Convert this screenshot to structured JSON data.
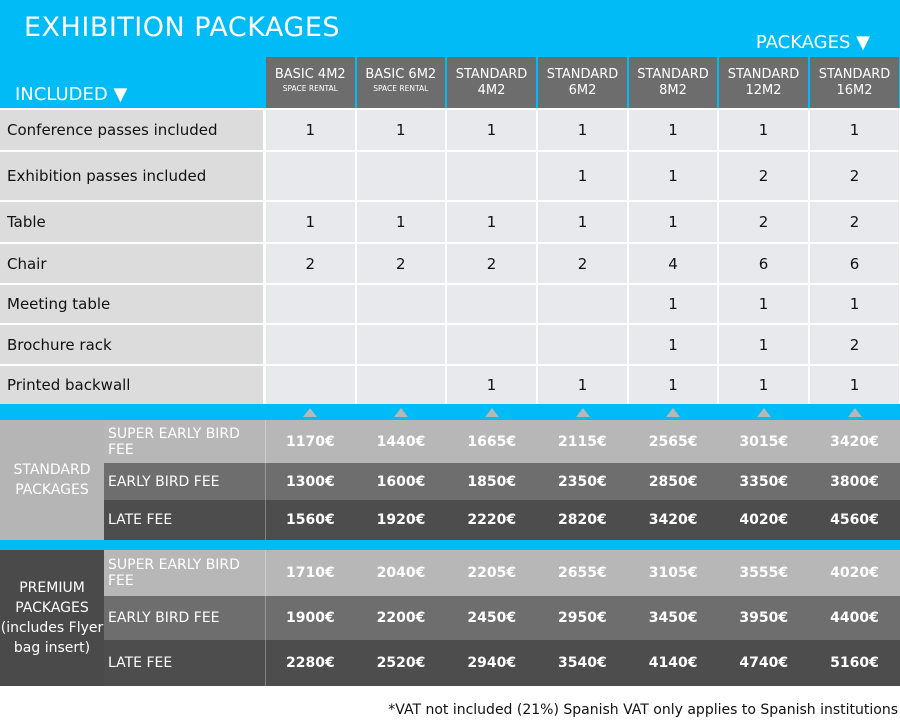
{
  "title": "EXHIBITION PACKAGES",
  "packages_label": "PACKAGES ▼",
  "included_label": "INCLUDED ▼",
  "columns": [
    {
      "name": "BASIC 4M2",
      "sub": "SPACE RENTAL"
    },
    {
      "name": "BASIC 6M2",
      "sub": "SPACE RENTAL"
    },
    {
      "name": "STANDARD",
      "sub2": "4M2"
    },
    {
      "name": "STANDARD",
      "sub2": "6M2"
    },
    {
      "name": "STANDARD",
      "sub2": "8M2"
    },
    {
      "name": "STANDARD",
      "sub2": "12M2"
    },
    {
      "name": "STANDARD",
      "sub2": "16M2"
    }
  ],
  "features": [
    {
      "label": "Conference passes included",
      "values": [
        "1",
        "1",
        "1",
        "1",
        "1",
        "1",
        "1"
      ]
    },
    {
      "label": "Exhibition passes included",
      "values": [
        "",
        "",
        "",
        "1",
        "1",
        "2",
        "2"
      ]
    },
    {
      "label": "Table",
      "values": [
        "1",
        "1",
        "1",
        "1",
        "1",
        "2",
        "2"
      ]
    },
    {
      "label": "Chair",
      "values": [
        "2",
        "2",
        "2",
        "2",
        "4",
        "6",
        "6"
      ]
    },
    {
      "label": "Meeting table",
      "values": [
        "",
        "",
        "",
        "",
        "1",
        "1",
        "1"
      ]
    },
    {
      "label": "Brochure rack",
      "values": [
        "",
        "",
        "",
        "",
        "1",
        "1",
        "2"
      ]
    },
    {
      "label": "Printed backwall",
      "values": [
        "",
        "",
        "1",
        "1",
        "1",
        "1",
        "1"
      ]
    }
  ],
  "standard": {
    "label": "STANDARD PACKAGES",
    "rows": [
      {
        "label": "SUPER EARLY BIRD FEE",
        "values": [
          "1170€",
          "1440€",
          "1665€",
          "2115€",
          "2565€",
          "3015€",
          "3420€"
        ]
      },
      {
        "label": "EARLY BIRD FEE",
        "values": [
          "1300€",
          "1600€",
          "1850€",
          "2350€",
          "2850€",
          "3350€",
          "3800€"
        ]
      },
      {
        "label": "LATE FEE",
        "values": [
          "1560€",
          "1920€",
          "2220€",
          "2820€",
          "3420€",
          "4020€",
          "4560€"
        ]
      }
    ]
  },
  "premium": {
    "label": "PREMIUM PACKAGES (includes Flyer bag insert)",
    "rows": [
      {
        "label": "SUPER EARLY BIRD FEE",
        "values": [
          "1710€",
          "2040€",
          "2205€",
          "2655€",
          "3105€",
          "3555€",
          "4020€"
        ]
      },
      {
        "label": "EARLY BIRD FEE",
        "values": [
          "1900€",
          "2200€",
          "2450€",
          "2950€",
          "3450€",
          "3950€",
          "4400€"
        ]
      },
      {
        "label": "LATE FEE",
        "values": [
          "2280€",
          "2520€",
          "2940€",
          "3540€",
          "4140€",
          "4740€",
          "5160€"
        ]
      }
    ]
  },
  "footnote": "*VAT not included (21%) Spanish VAT only applies to Spanish institutions",
  "colors": {
    "accent": "#00bbf5",
    "header": "#6d6d6d",
    "super": "#b7b7b7",
    "early": "#6e6e6e",
    "late": "#4d4d4d"
  }
}
